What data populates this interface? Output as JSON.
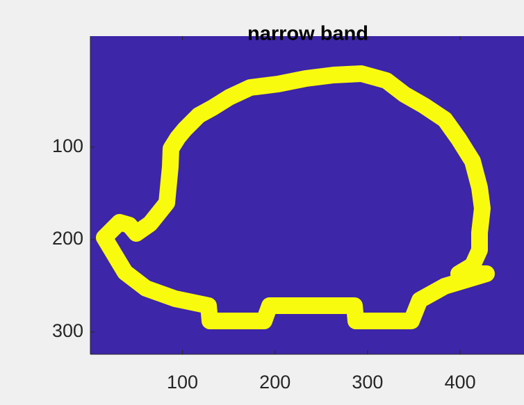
{
  "chart_data": {
    "type": "image",
    "title": "narrow band",
    "xlim": [
      0.5,
      469
    ],
    "ylim": [
      -20,
      324
    ],
    "y_reversed": true,
    "xticks": [
      100,
      200,
      300,
      400
    ],
    "yticks": [
      100,
      200,
      300
    ],
    "background_color": "#3d26a8",
    "band_color": "#f9fb0e"
  }
}
